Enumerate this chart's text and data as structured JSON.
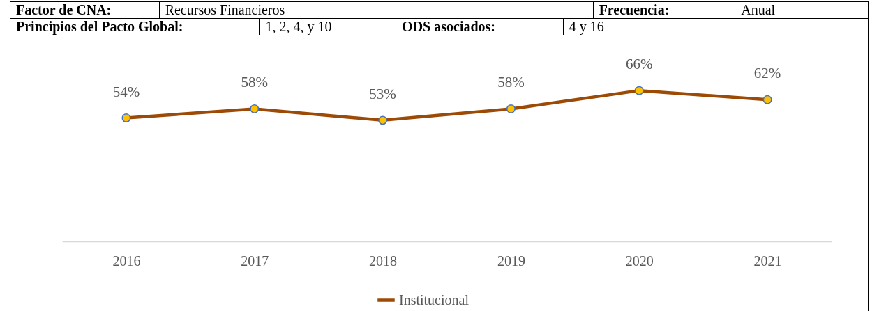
{
  "chart_data": {
    "type": "line",
    "annotations": [
      "Factor de CNA:",
      "Recursos Financieros",
      "Frecuencia:",
      "Anual",
      "Principios del Pacto Global:",
      "1, 2, 4, y 10",
      "ODS asociados:",
      "4 y 16"
    ],
    "categories": [
      "2016",
      "2017",
      "2018",
      "2019",
      "2020",
      "2021"
    ],
    "series": [
      {
        "name": "Institucional",
        "color": "#9c4a06",
        "values": [
          54,
          58,
          53,
          58,
          66,
          62
        ],
        "value_labels": [
          "54%",
          "58%",
          "53%",
          "58%",
          "66%",
          "62%"
        ]
      }
    ],
    "tick_labels": "x",
    "grid": false,
    "legend": "bottom",
    "marker": "circle",
    "line_style": "solid"
  }
}
